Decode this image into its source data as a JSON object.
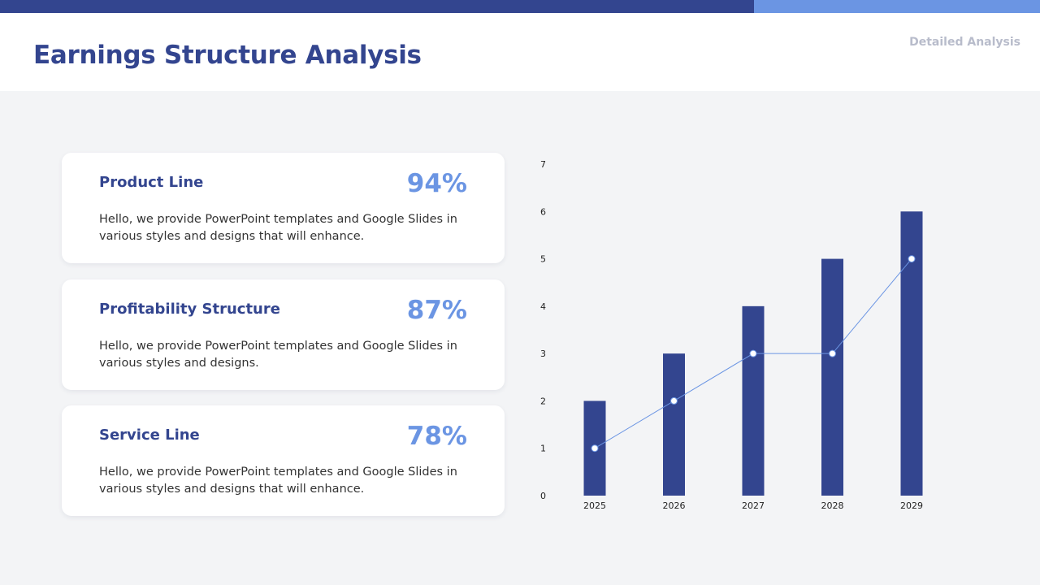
{
  "header": {
    "title": "Earnings Structure Analysis",
    "tag": "Detailed Analysis"
  },
  "colors": {
    "primary": "#33458f",
    "accent": "#6b95e3",
    "background": "#f3f4f6"
  },
  "cards": [
    {
      "title": "Product Line",
      "percent": "94%",
      "body": "Hello, we provide PowerPoint templates and Google Slides in various styles and designs that will enhance."
    },
    {
      "title": "Profitability Structure",
      "percent": "87%",
      "body": "Hello, we provide PowerPoint templates and Google Slides in various styles and designs."
    },
    {
      "title": "Service Line",
      "percent": "78%",
      "body": "Hello, we provide PowerPoint templates and Google Slides in various styles and designs that will enhance."
    }
  ],
  "chart_data": {
    "type": "bar",
    "categories": [
      "2025",
      "2026",
      "2027",
      "2028",
      "2029"
    ],
    "series": [
      {
        "type": "bar",
        "values": [
          2,
          3,
          4,
          5,
          6
        ],
        "color": "#33458f"
      },
      {
        "type": "line",
        "values": [
          1,
          2,
          3,
          3,
          5
        ],
        "color": "#6b95e3"
      }
    ],
    "ylim": [
      0,
      7
    ],
    "yticks": [
      0,
      1,
      2,
      3,
      4,
      5,
      6,
      7
    ],
    "grid": false,
    "legend": "none"
  }
}
